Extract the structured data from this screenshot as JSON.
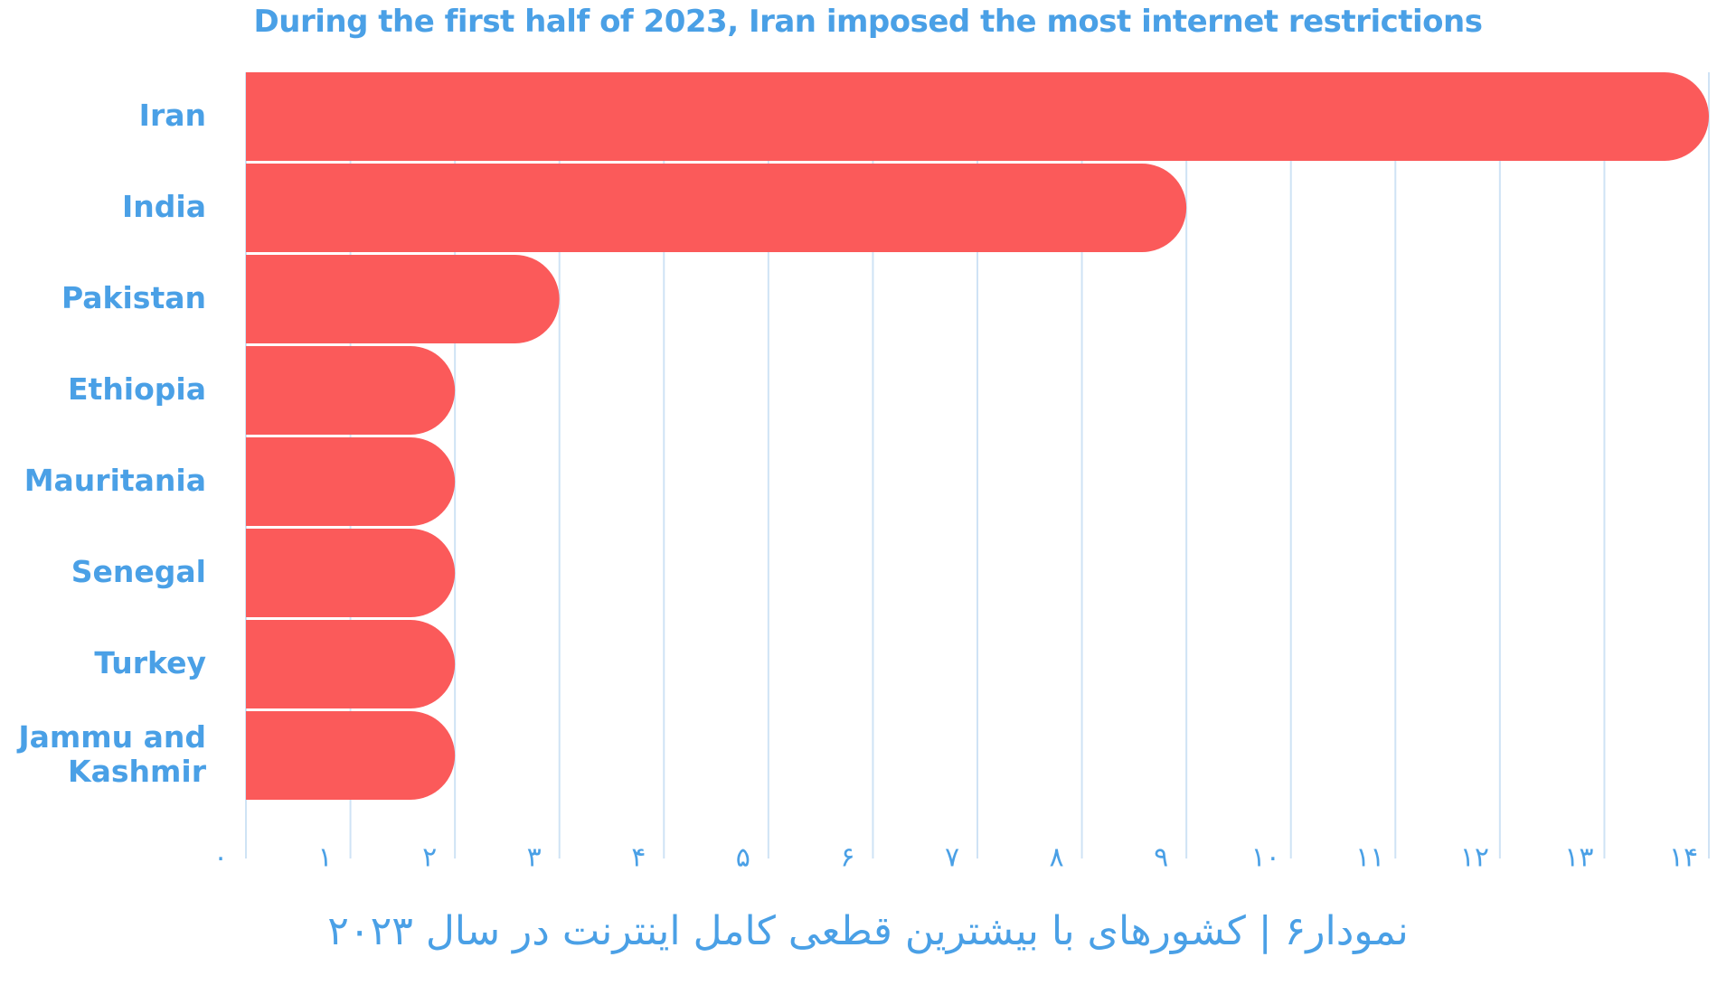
{
  "subtitle": "During the first half of 2023, Iran imposed the most internet restrictions",
  "caption": "نمودار۶ | کشورهای با بیشترین قطعی کامل اینترنت در سال ۲۰۲۳",
  "colors": {
    "bar": "#fb5a5a",
    "text": "#4aa0e6",
    "grid": "#cfe3f5"
  },
  "chart_data": {
    "type": "bar",
    "orientation": "horizontal",
    "title": "During the first half of 2023, Iran imposed the most internet restrictions",
    "categories": [
      "Iran",
      "India",
      "Pakistan",
      "Ethiopia",
      "Mauritania",
      "Senegal",
      "Turkey",
      "Jammu and Kashmir"
    ],
    "category_lines": [
      [
        "Iran"
      ],
      [
        "India"
      ],
      [
        "Pakistan"
      ],
      [
        "Ethiopia"
      ],
      [
        "Mauritania"
      ],
      [
        "Senegal"
      ],
      [
        "Turkey"
      ],
      [
        "Jammu and",
        "Kashmir"
      ]
    ],
    "values": [
      14,
      9,
      3,
      2,
      2,
      2,
      2,
      2
    ],
    "xlim": [
      0,
      14
    ],
    "xticks": [
      0,
      1,
      2,
      3,
      4,
      5,
      6,
      7,
      8,
      9,
      10,
      11,
      12,
      13,
      14
    ],
    "xtick_labels": [
      "۰",
      "۱",
      "۲",
      "۳",
      "۴",
      "۵",
      "۶",
      "۷",
      "۸",
      "۹",
      "۱۰",
      "۱۱",
      "۱۲",
      "۱۳",
      "۱۴"
    ],
    "grid": true,
    "legend": "none"
  }
}
